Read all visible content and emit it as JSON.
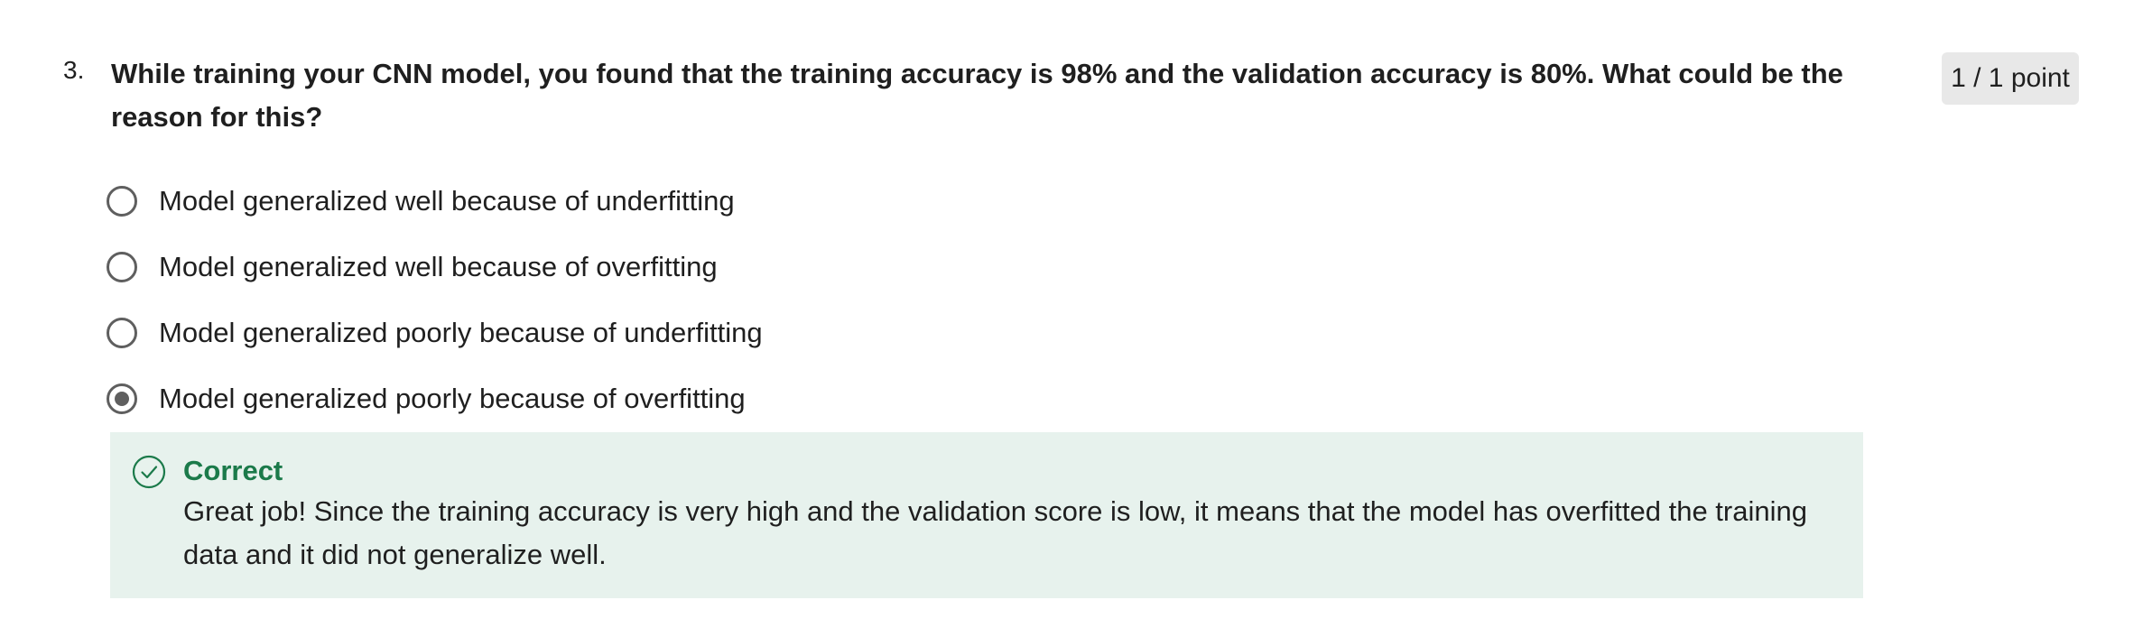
{
  "question": {
    "number": "3.",
    "text": "While training your CNN model, you found that the training accuracy is 98% and the validation accuracy is 80%. What could be the reason for this?",
    "points": "1 / 1 point",
    "options": [
      {
        "label": "Model generalized well because of underfitting",
        "selected": false
      },
      {
        "label": "Model generalized well because of overfitting",
        "selected": false
      },
      {
        "label": "Model generalized poorly because of underfitting",
        "selected": false
      },
      {
        "label": "Model generalized poorly because of overfitting",
        "selected": true
      }
    ]
  },
  "feedback": {
    "status": "Correct",
    "icon": "check-circle-icon",
    "message": "Great job! Since the training accuracy is very high and the validation score is low, it means that the model has overfitted the training data and it did not generalize well.",
    "colors": {
      "background": "#e7f2ed",
      "accent": "#1b7a4a"
    }
  }
}
